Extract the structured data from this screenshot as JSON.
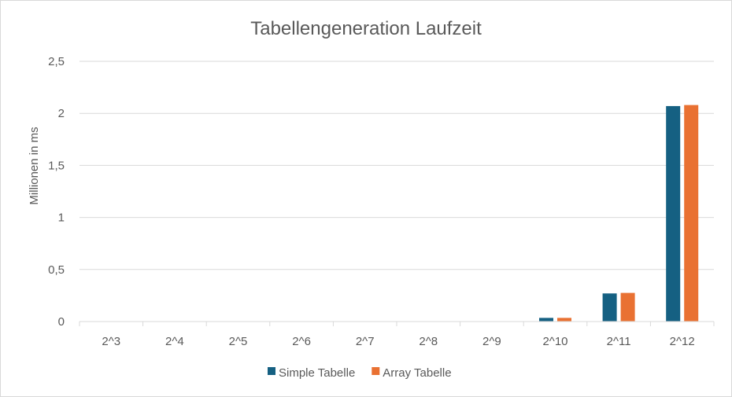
{
  "chart_data": {
    "type": "bar",
    "title": "Tabellengeneration Laufzeit",
    "xlabel": "",
    "ylabel": "Millionen in ms",
    "categories": [
      "2^3",
      "2^4",
      "2^5",
      "2^6",
      "2^7",
      "2^8",
      "2^9",
      "2^10",
      "2^11",
      "2^12"
    ],
    "series": [
      {
        "name": "Simple Tabelle",
        "color": "#156082",
        "values": [
          0,
          0,
          0,
          0,
          0,
          0,
          0.002,
          0.035,
          0.27,
          2.07
        ]
      },
      {
        "name": "Array Tabelle",
        "color": "#E97132",
        "values": [
          0,
          0,
          0,
          0,
          0,
          0,
          0.002,
          0.035,
          0.275,
          2.08
        ]
      }
    ],
    "ylim": [
      0,
      2.5
    ],
    "yticks": [
      0,
      0.5,
      1,
      1.5,
      2,
      2.5
    ],
    "ytick_labels": [
      "0",
      "0,5",
      "1",
      "1,5",
      "2",
      "2,5"
    ],
    "grid": true,
    "legend": "bottom"
  }
}
